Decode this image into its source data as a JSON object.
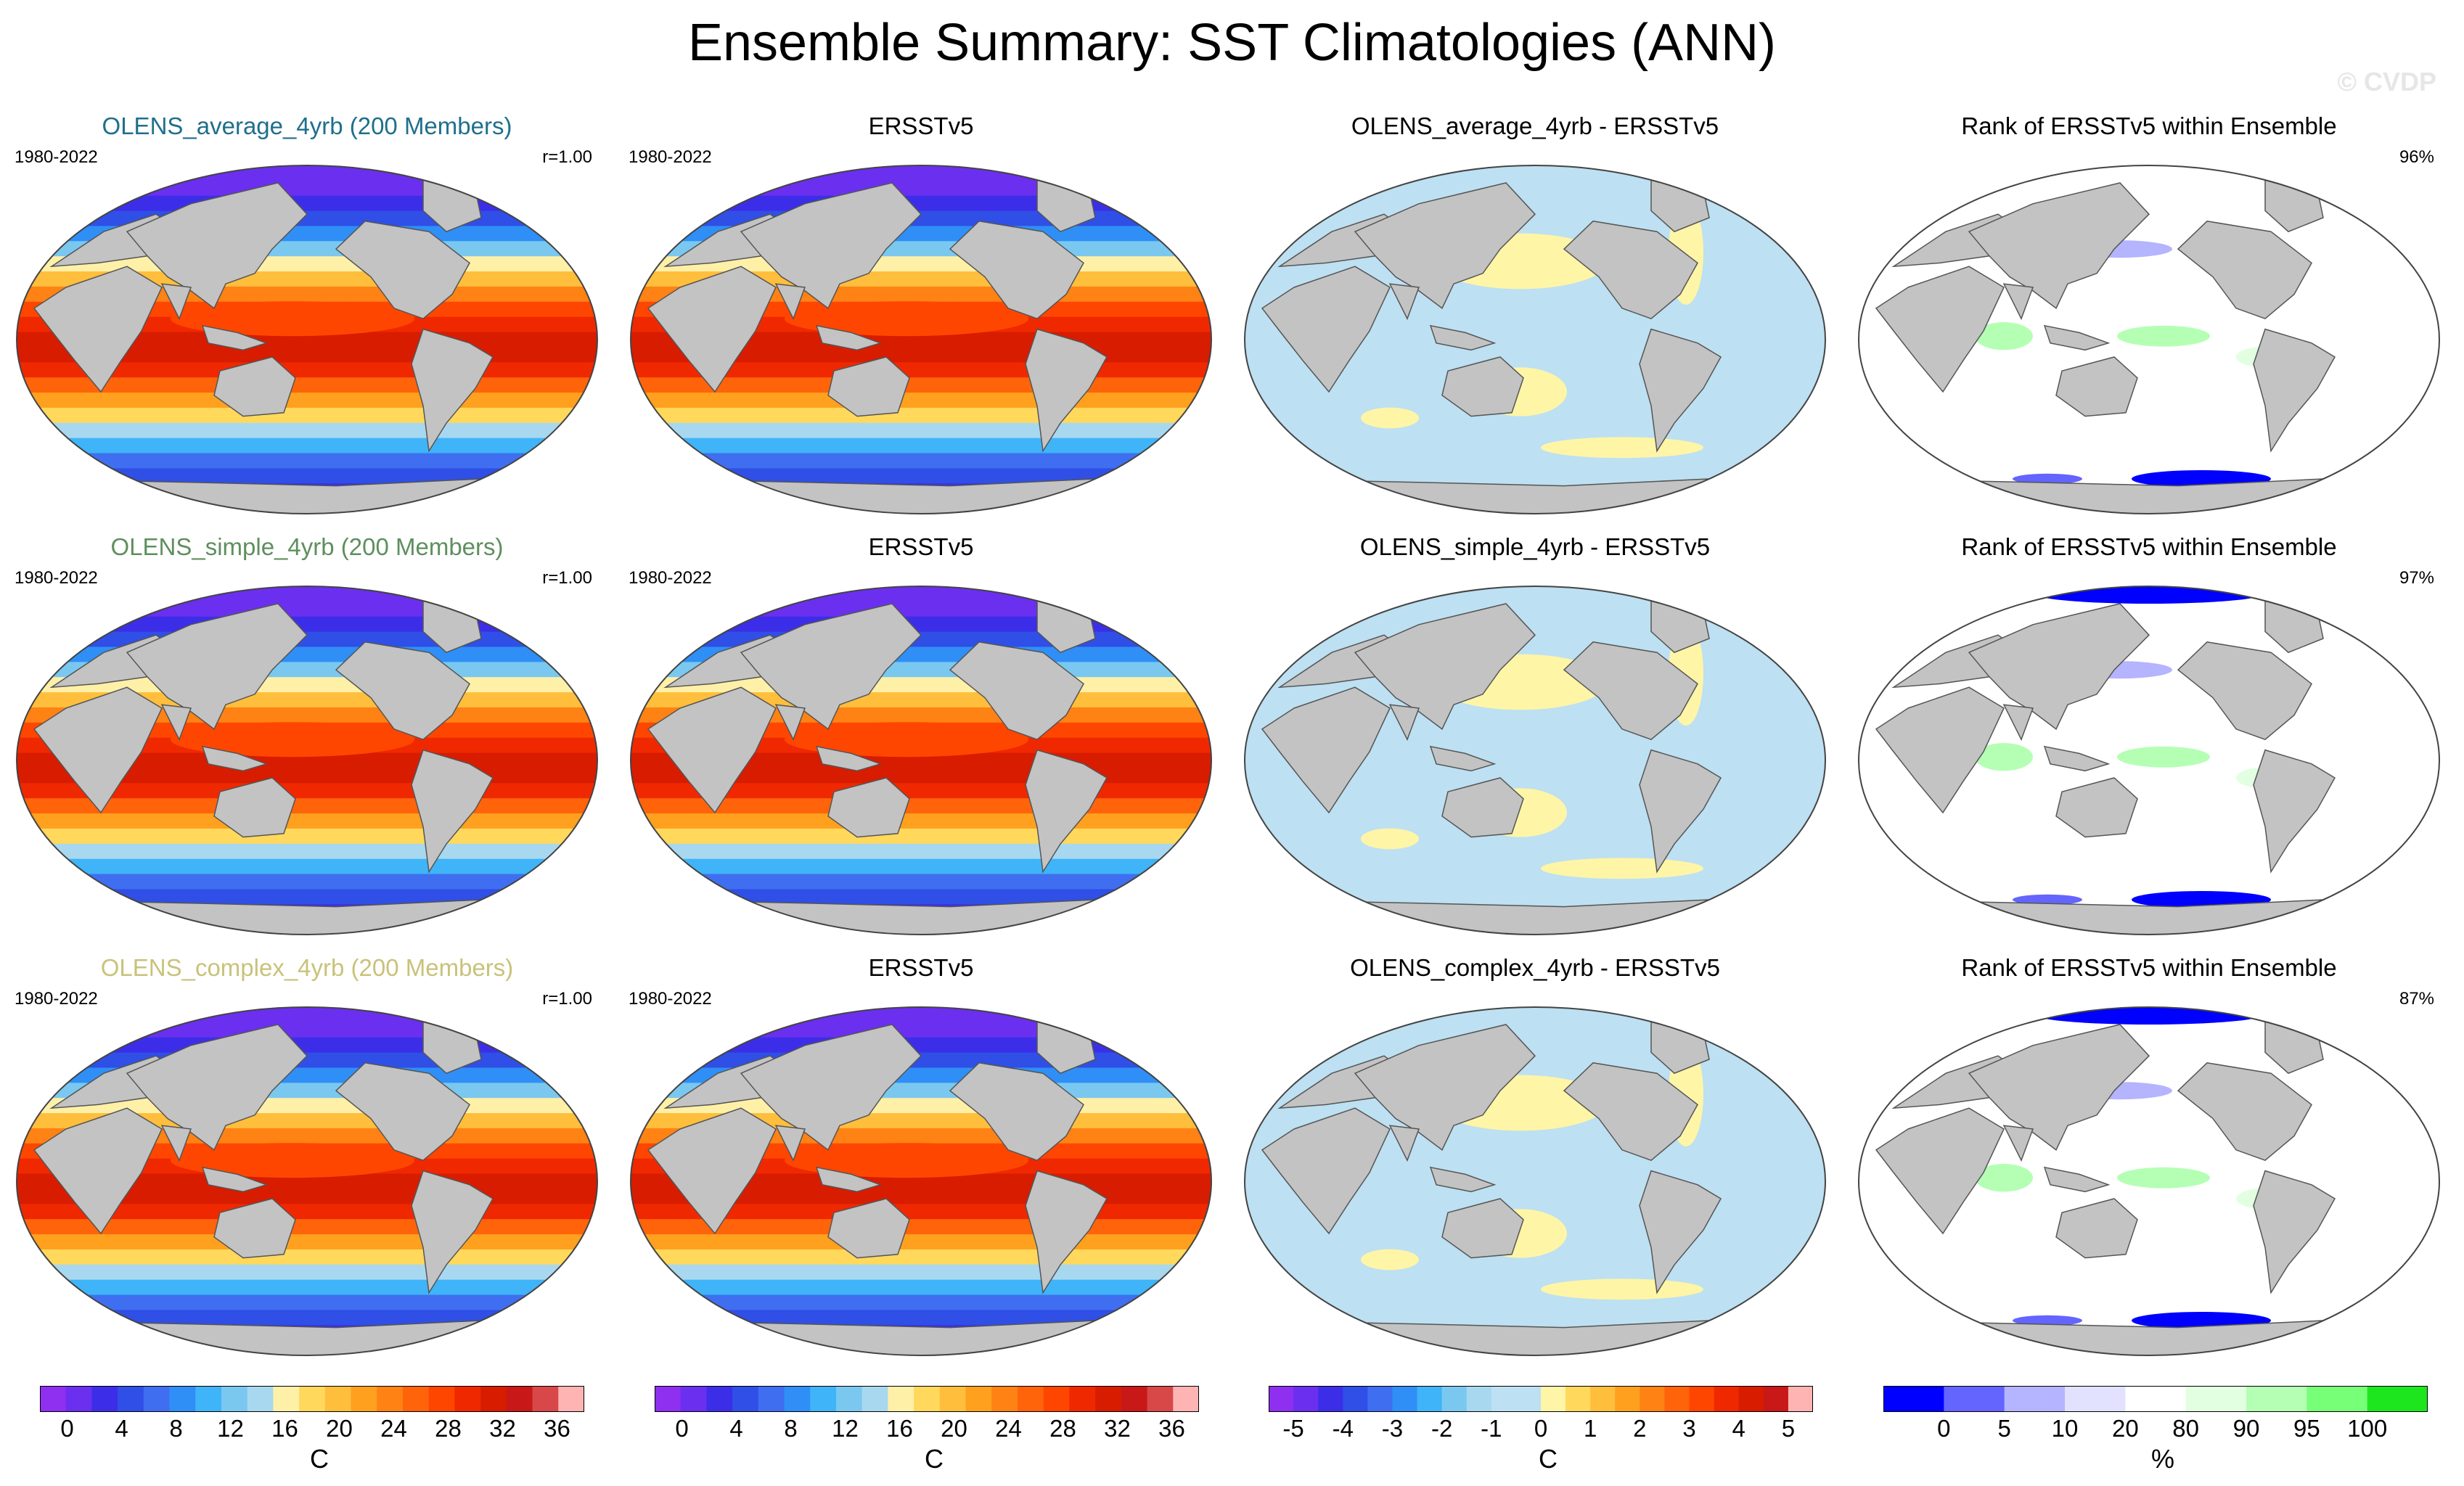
{
  "title": "Ensemble Summary: SST Climatologies (ANN)",
  "watermark": "© CVDP",
  "colors": {
    "land": "#c3c3c3",
    "ocean_ring": "#000000",
    "title_row1": "#1f6f8b",
    "title_row2": "#5e8f5e",
    "title_row3": "#c9c27a",
    "neg_diff": "#bde0f2",
    "pos_diff": "#fff5a6",
    "rank_white": "#ffffff",
    "rank_low": "#1414e6",
    "rank_high": "#3ce63c"
  },
  "rows": [
    {
      "panels": [
        {
          "title": "OLENS_average_4yrb (200 Members)",
          "left": "1980-2022",
          "right": "r=1.00",
          "kind": "clim",
          "title_color": "#1f6f8b"
        },
        {
          "title": "ERSSTv5",
          "left": "1980-2022",
          "right": "",
          "kind": "clim",
          "title_color": "#000000"
        },
        {
          "title": "OLENS_average_4yrb - ERSSTv5",
          "left": "",
          "right": "",
          "kind": "diff",
          "title_color": "#000000"
        },
        {
          "title": "Rank of ERSSTv5 within Ensemble",
          "left": "",
          "right": "96%",
          "kind": "rank",
          "title_color": "#000000"
        }
      ]
    },
    {
      "panels": [
        {
          "title": "OLENS_simple_4yrb (200 Members)",
          "left": "1980-2022",
          "right": "r=1.00",
          "kind": "clim",
          "title_color": "#5e8f5e"
        },
        {
          "title": "ERSSTv5",
          "left": "1980-2022",
          "right": "",
          "kind": "clim",
          "title_color": "#000000"
        },
        {
          "title": "OLENS_simple_4yrb - ERSSTv5",
          "left": "",
          "right": "",
          "kind": "diff",
          "title_color": "#000000"
        },
        {
          "title": "Rank of ERSSTv5 within Ensemble",
          "left": "",
          "right": "97%",
          "kind": "rank",
          "title_color": "#000000"
        }
      ]
    },
    {
      "panels": [
        {
          "title": "OLENS_complex_4yrb (200 Members)",
          "left": "1980-2022",
          "right": "r=1.00",
          "kind": "clim",
          "title_color": "#c9c27a"
        },
        {
          "title": "ERSSTv5",
          "left": "1980-2022",
          "right": "",
          "kind": "clim",
          "title_color": "#000000"
        },
        {
          "title": "OLENS_complex_4yrb - ERSSTv5",
          "left": "",
          "right": "",
          "kind": "diff",
          "title_color": "#000000"
        },
        {
          "title": "Rank of ERSSTv5 within Ensemble",
          "left": "",
          "right": "87%",
          "kind": "rank",
          "title_color": "#000000"
        }
      ]
    }
  ],
  "colorbars": [
    {
      "unit": "C",
      "tick_labels": [
        "0",
        "4",
        "8",
        "12",
        "16",
        "20",
        "24",
        "28",
        "32",
        "36"
      ],
      "levels": [
        -2,
        0,
        2,
        4,
        6,
        8,
        10,
        12,
        14,
        16,
        18,
        20,
        22,
        24,
        26,
        28,
        30,
        32,
        34,
        36,
        38
      ],
      "colors": [
        "#8f2ff0",
        "#6b2ff0",
        "#3c2ee8",
        "#2f4fe6",
        "#3f6ff0",
        "#2f8ff6",
        "#3fb4f8",
        "#7ac8f0",
        "#a8d8f0",
        "#fff0a8",
        "#ffd85c",
        "#ffbe3c",
        "#ffa01e",
        "#ff8214",
        "#ff640a",
        "#ff4600",
        "#f02800",
        "#d81c00",
        "#c81818",
        "#d84848",
        "#ffb4b4"
      ]
    },
    {
      "unit": "C",
      "tick_labels": [
        "0",
        "4",
        "8",
        "12",
        "16",
        "20",
        "24",
        "28",
        "32",
        "36"
      ],
      "levels": [
        -2,
        0,
        2,
        4,
        6,
        8,
        10,
        12,
        14,
        16,
        18,
        20,
        22,
        24,
        26,
        28,
        30,
        32,
        34,
        36,
        38
      ],
      "colors": [
        "#8f2ff0",
        "#6b2ff0",
        "#3c2ee8",
        "#2f4fe6",
        "#3f6ff0",
        "#2f8ff6",
        "#3fb4f8",
        "#7ac8f0",
        "#a8d8f0",
        "#fff0a8",
        "#ffd85c",
        "#ffbe3c",
        "#ffa01e",
        "#ff8214",
        "#ff640a",
        "#ff4600",
        "#f02800",
        "#d81c00",
        "#c81818",
        "#d84848",
        "#ffb4b4"
      ]
    },
    {
      "unit": "C",
      "tick_labels": [
        "-5",
        "-4",
        "-3",
        "-2",
        "-1",
        "0",
        "1",
        "2",
        "3",
        "4",
        "5"
      ],
      "levels": [
        -5.5,
        -5,
        -4.5,
        -4,
        -3.5,
        -3,
        -2.5,
        -2,
        -1.5,
        -1,
        -0.5,
        0,
        0.5,
        1,
        1.5,
        2,
        2.5,
        3,
        3.5,
        4,
        4.5,
        5,
        5.5
      ],
      "colors": [
        "#8f2ff0",
        "#6b2ff0",
        "#3c2ee8",
        "#2f4fe6",
        "#3f6ff0",
        "#2f8ff6",
        "#3fb4f8",
        "#7ac8f0",
        "#a8d8f0",
        "#bde0f2",
        "#bde0f2",
        "#fff5a6",
        "#ffd85c",
        "#ffbe3c",
        "#ffa01e",
        "#ff8214",
        "#ff640a",
        "#ff4600",
        "#f02800",
        "#d81c00",
        "#c81818",
        "#ffb4b4"
      ]
    },
    {
      "unit": "%",
      "tick_labels": [
        "0",
        "5",
        "10",
        "20",
        "80",
        "90",
        "95",
        "100"
      ],
      "levels": [
        -5,
        0,
        5,
        10,
        20,
        80,
        90,
        95,
        100,
        105
      ],
      "colors": [
        "#0000ff",
        "#6464ff",
        "#b4b4ff",
        "#e2e2ff",
        "#ffffff",
        "#e2ffe2",
        "#b4ffb4",
        "#78ff78",
        "#1ee61e"
      ]
    }
  ],
  "chart_data": [
    {
      "type": "heatmap",
      "title": "OLENS_average_4yrb (200 Members)",
      "period": "1980-2022",
      "pattern_correlation": 1.0,
      "unit": "C",
      "range": [
        0,
        36
      ]
    },
    {
      "type": "heatmap",
      "title": "ERSSTv5",
      "period": "1980-2022",
      "unit": "C",
      "range": [
        0,
        36
      ]
    },
    {
      "type": "heatmap",
      "title": "OLENS_average_4yrb - ERSSTv5",
      "unit": "C",
      "range": [
        -5,
        5
      ]
    },
    {
      "type": "heatmap",
      "title": "Rank of ERSSTv5 within Ensemble",
      "unit": "%",
      "area_within_10_90_percent": 96
    },
    {
      "type": "heatmap",
      "title": "OLENS_simple_4yrb (200 Members)",
      "period": "1980-2022",
      "pattern_correlation": 1.0,
      "unit": "C",
      "range": [
        0,
        36
      ]
    },
    {
      "type": "heatmap",
      "title": "ERSSTv5",
      "period": "1980-2022",
      "unit": "C",
      "range": [
        0,
        36
      ]
    },
    {
      "type": "heatmap",
      "title": "OLENS_simple_4yrb - ERSSTv5",
      "unit": "C",
      "range": [
        -5,
        5
      ]
    },
    {
      "type": "heatmap",
      "title": "Rank of ERSSTv5 within Ensemble",
      "unit": "%",
      "area_within_10_90_percent": 97
    },
    {
      "type": "heatmap",
      "title": "OLENS_complex_4yrb (200 Members)",
      "period": "1980-2022",
      "pattern_correlation": 1.0,
      "unit": "C",
      "range": [
        0,
        36
      ]
    },
    {
      "type": "heatmap",
      "title": "ERSSTv5",
      "period": "1980-2022",
      "unit": "C",
      "range": [
        0,
        36
      ]
    },
    {
      "type": "heatmap",
      "title": "OLENS_complex_4yrb - ERSSTv5",
      "unit": "C",
      "range": [
        -5,
        5
      ]
    },
    {
      "type": "heatmap",
      "title": "Rank of ERSSTv5 within Ensemble",
      "unit": "%",
      "area_within_10_90_percent": 87
    }
  ]
}
